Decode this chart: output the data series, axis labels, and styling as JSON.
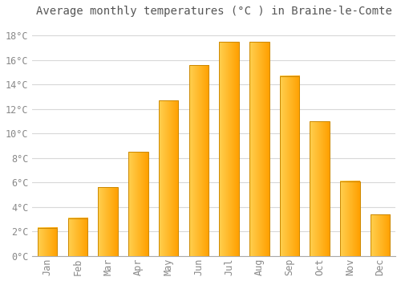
{
  "title": "Average monthly temperatures (°C ) in Braine-le-Comte",
  "months": [
    "Jan",
    "Feb",
    "Mar",
    "Apr",
    "May",
    "Jun",
    "Jul",
    "Aug",
    "Sep",
    "Oct",
    "Nov",
    "Dec"
  ],
  "values": [
    2.3,
    3.1,
    5.6,
    8.5,
    12.7,
    15.6,
    17.5,
    17.5,
    14.7,
    11.0,
    6.1,
    3.4
  ],
  "bar_color_left": "#FFD050",
  "bar_color_right": "#FFA000",
  "bar_edge_color": "#CC8800",
  "background_color": "#ffffff",
  "grid_color": "#d8d8d8",
  "tick_label_color": "#888888",
  "title_color": "#555555",
  "ylim": [
    0,
    19
  ],
  "yticks": [
    0,
    2,
    4,
    6,
    8,
    10,
    12,
    14,
    16,
    18
  ],
  "ytick_labels": [
    "0°C",
    "2°C",
    "4°C",
    "6°C",
    "8°C",
    "10°C",
    "12°C",
    "14°C",
    "16°C",
    "18°C"
  ],
  "title_fontsize": 10,
  "tick_fontsize": 8.5,
  "bar_width": 0.65,
  "font_family": "monospace"
}
